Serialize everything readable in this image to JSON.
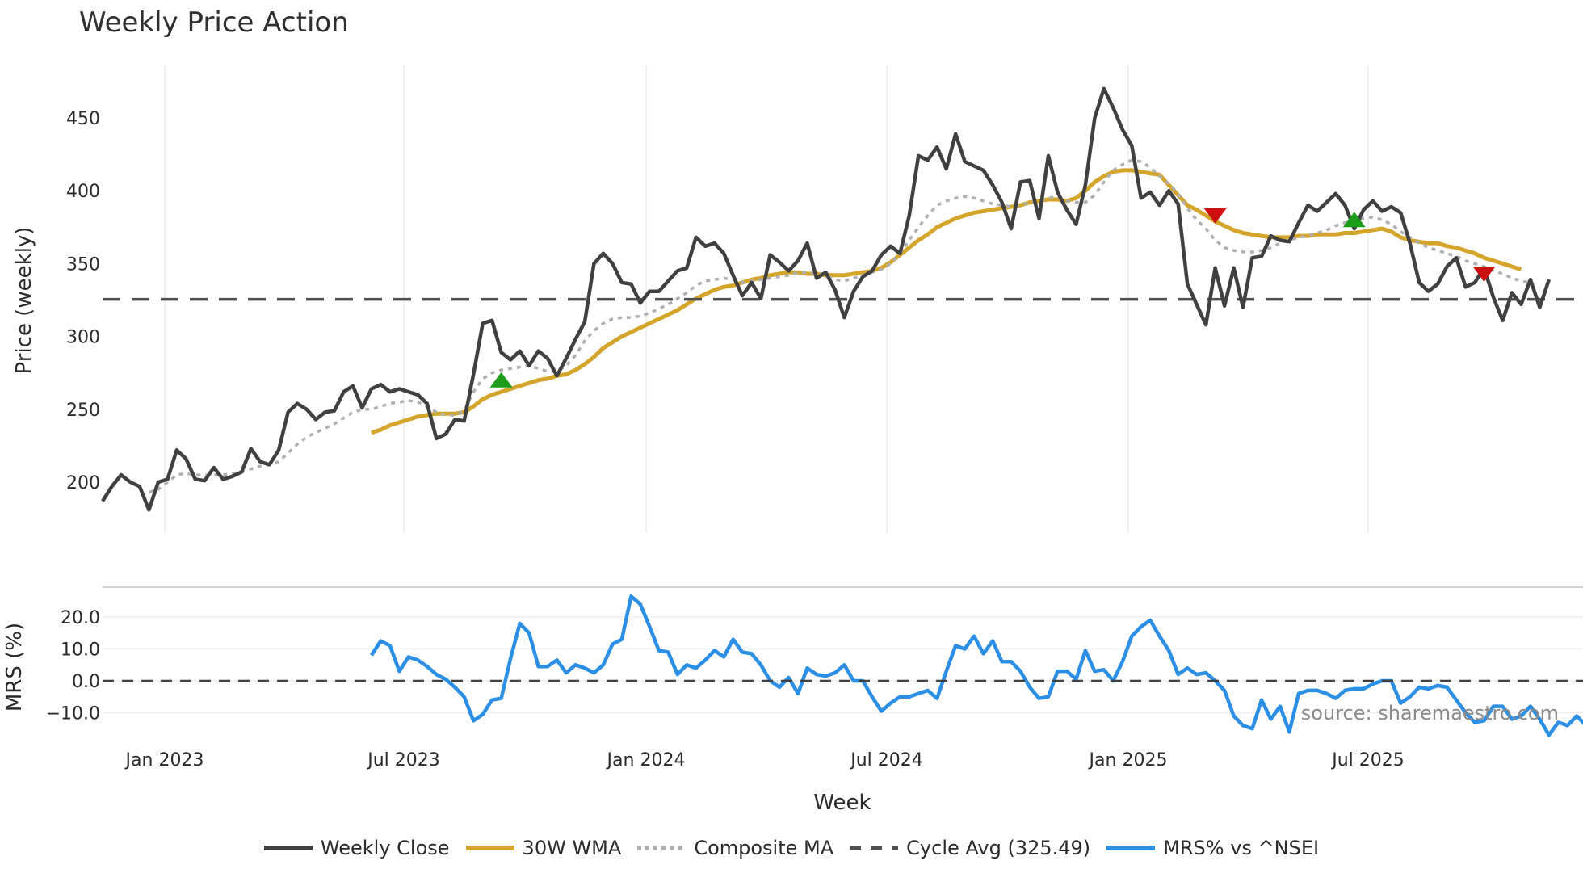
{
  "title": "Weekly Price Action",
  "source_text": "source: sharemaestro.com",
  "x_label": "Week",
  "price_panel": {
    "y_label": "Price (weekly)",
    "y_ticks": [
      "200",
      "250",
      "300",
      "350",
      "400",
      "450"
    ]
  },
  "mrs_panel": {
    "y_label": "MRS (%)",
    "y_ticks": [
      "20.0",
      "10.0",
      "0.0",
      "−10.0"
    ]
  },
  "x_ticks": [
    "Jan 2023",
    "Jul 2023",
    "Jan 2024",
    "Jul 2024",
    "Jan 2025",
    "Jul 2025"
  ],
  "legend": [
    {
      "label": "Weekly Close",
      "color": "#404040",
      "style": "solid"
    },
    {
      "label": "30W WMA",
      "color": "#d4a52a",
      "style": "solid"
    },
    {
      "label": "Composite MA",
      "color": "#b0b0b0",
      "style": "dotted"
    },
    {
      "label": "Cycle Avg (325.49)",
      "color": "#505050",
      "style": "dashed"
    },
    {
      "label": "MRS% vs ^NSEI",
      "color": "#2b8fe6",
      "style": "solid"
    }
  ],
  "chart_data": [
    {
      "type": "line",
      "title": "Weekly Price Action",
      "xlabel": "Week",
      "ylabel": "Price (weekly)",
      "ylim": [
        162,
        490
      ],
      "x_tick_labels": [
        "Jan 2023",
        "Jul 2023",
        "Jan 2024",
        "Jul 2024",
        "Jan 2025",
        "Jul 2025"
      ],
      "x_start": "2022-11-14",
      "x_step": "1 week",
      "grid": "vertical only",
      "series": [
        {
          "name": "Weekly Close",
          "color": "#404040",
          "values": [
            187,
            197,
            205,
            200,
            197,
            181,
            200,
            202,
            222,
            216,
            202,
            201,
            210,
            202,
            204,
            207,
            223,
            214,
            212,
            222,
            248,
            254,
            250,
            243,
            248,
            249,
            262,
            266,
            251,
            264,
            267,
            262,
            264,
            262,
            260,
            254,
            230,
            233,
            243,
            242,
            274,
            309,
            311,
            289,
            284,
            290,
            280,
            290,
            285,
            273,
            285,
            298,
            310,
            350,
            357,
            350,
            337,
            336,
            323,
            331,
            331,
            338,
            345,
            347,
            368,
            362,
            364,
            357,
            342,
            328,
            337,
            326,
            356,
            351,
            345,
            352,
            364,
            340,
            344,
            332,
            313,
            331,
            341,
            345,
            356,
            362,
            357,
            383,
            424,
            421,
            430,
            415,
            439,
            420,
            417,
            414,
            404,
            392,
            374,
            406,
            407,
            381,
            424,
            399,
            387,
            377,
            404,
            450,
            470,
            457,
            442,
            431,
            395,
            399,
            390,
            400,
            391,
            336,
            322,
            308,
            347,
            321,
            347,
            320,
            354,
            355,
            369,
            366,
            365,
            378,
            390,
            386,
            392,
            398,
            390,
            374,
            387,
            393,
            386,
            389,
            385,
            364,
            337,
            331,
            336,
            348,
            354,
            334,
            337,
            347,
            327,
            311,
            330,
            322,
            339,
            320,
            339
          ],
          "line_width": 4
        },
        {
          "name": "30W WMA",
          "color": "#d4a52a",
          "start_index": 29,
          "values": [
            234,
            236,
            239,
            241,
            243,
            245,
            246,
            247,
            247,
            247,
            248,
            252,
            257,
            260,
            262,
            264,
            266,
            268,
            270,
            271,
            273,
            274,
            277,
            281,
            286,
            292,
            296,
            300,
            303,
            306,
            309,
            312,
            315,
            318,
            322,
            326,
            329,
            332,
            334,
            335,
            337,
            339,
            340,
            342,
            343,
            344,
            344,
            343,
            343,
            342,
            342,
            342,
            343,
            344,
            345,
            347,
            351,
            356,
            361,
            366,
            370,
            375,
            378,
            381,
            383,
            385,
            386,
            387,
            388,
            389,
            390,
            392,
            393,
            394,
            394,
            393,
            395,
            400,
            406,
            410,
            413,
            414,
            414,
            413,
            412,
            411,
            404,
            397,
            390,
            387,
            383,
            379,
            376,
            373,
            371,
            370,
            369,
            368,
            368,
            368,
            369,
            369,
            370,
            370,
            370,
            371,
            371,
            372,
            373,
            374,
            372,
            368,
            366,
            365,
            364,
            364,
            362,
            361,
            359,
            357,
            354,
            352,
            350,
            348,
            346
          ]
        },
        {
          "name": "Composite MA",
          "color": "#b0b0b0",
          "start_index": 5,
          "values": [
            193,
            195,
            200,
            205,
            206,
            205,
            205,
            205,
            205,
            206,
            207,
            209,
            211,
            212,
            214,
            220,
            226,
            231,
            234,
            237,
            240,
            244,
            248,
            250,
            250,
            252,
            254,
            255,
            256,
            255,
            252,
            248,
            246,
            246,
            249,
            262,
            271,
            275,
            277,
            278,
            279,
            280,
            278,
            276,
            276,
            280,
            287,
            297,
            304,
            309,
            312,
            313,
            313,
            314,
            316,
            319,
            322,
            326,
            330,
            335,
            338,
            339,
            340,
            339,
            337,
            338,
            339,
            340,
            341,
            342,
            344,
            344,
            343,
            342,
            339,
            338,
            340,
            342,
            344,
            346,
            350,
            357,
            366,
            375,
            383,
            390,
            393,
            395,
            396,
            395,
            393,
            391,
            390,
            389,
            390,
            392,
            393,
            395,
            396,
            393,
            392,
            392,
            397,
            406,
            414,
            418,
            421,
            420,
            416,
            410,
            405,
            398,
            388,
            380,
            374,
            366,
            361,
            359,
            358,
            358,
            359,
            361,
            364,
            366,
            368,
            369,
            371,
            373,
            376,
            378,
            379,
            381,
            382,
            380,
            377,
            372,
            368,
            364,
            361,
            359,
            357,
            355,
            352,
            350,
            348,
            345,
            343,
            340,
            338,
            337
          ],
          "style": "dotted"
        },
        {
          "name": "Cycle Avg (325.49)",
          "color": "#505050",
          "constant": 325.49,
          "style": "dashed"
        }
      ],
      "markers": [
        {
          "type": "buy",
          "shape": "triangle-up",
          "color": "#1a9e1a",
          "index": 43,
          "price": 270
        },
        {
          "type": "sell",
          "shape": "triangle-down",
          "color": "#cc1111",
          "index": 120,
          "price": 383
        },
        {
          "type": "buy",
          "shape": "triangle-up",
          "color": "#1a9e1a",
          "index": 135,
          "price": 380
        },
        {
          "type": "sell",
          "shape": "triangle-down",
          "color": "#cc1111",
          "index": 149,
          "price": 343
        }
      ]
    },
    {
      "type": "line",
      "title": "",
      "ylabel": "MRS (%)",
      "ylim": [
        -16,
        29
      ],
      "series": [
        {
          "name": "MRS% vs ^NSEI",
          "color": "#2b8fe6",
          "start_index": 29,
          "values": [
            8,
            12.5,
            11,
            3,
            7.5,
            6.5,
            4.5,
            2,
            0.5,
            -2,
            -5,
            -12.5,
            -10.5,
            -6,
            -5.5,
            7,
            18,
            15,
            4.5,
            4.5,
            6.5,
            2.5,
            5,
            4,
            2.5,
            5,
            11.5,
            13,
            26.5,
            24,
            17,
            9.5,
            9,
            2,
            5,
            4,
            6.5,
            9.5,
            7.5,
            13,
            9,
            8.5,
            5,
            0,
            -2,
            1,
            -4,
            4,
            2,
            1.5,
            2.5,
            5,
            0,
            0,
            -5,
            -9.5,
            -7,
            -5,
            -5,
            -4,
            -3,
            -5.5,
            3,
            11,
            10,
            14,
            8.5,
            12.5,
            6,
            6,
            3,
            -2,
            -5.5,
            -5,
            3,
            3,
            0.5,
            9.5,
            3,
            3.5,
            0,
            6,
            14,
            17,
            19,
            14,
            9.5,
            2,
            4,
            2,
            2.5,
            0,
            -3,
            -11,
            -14,
            -15,
            -6,
            -12,
            -8,
            -16,
            -4,
            -3,
            -3,
            -4,
            -5.5,
            -3,
            -2.5,
            -2.5,
            -1,
            0,
            0,
            -7,
            -5,
            -2,
            -2.5,
            -1.5,
            -2,
            -6,
            -10,
            -13,
            -12.5,
            -8,
            -8,
            -12,
            -11,
            -8,
            -12,
            -17,
            -13,
            -14,
            -11,
            -14,
            -10
          ]
        },
        {
          "name": "Zero line",
          "color": "#404040",
          "constant": 0,
          "style": "dashed"
        }
      ],
      "yticks": [
        -10,
        0,
        10,
        20
      ]
    }
  ]
}
